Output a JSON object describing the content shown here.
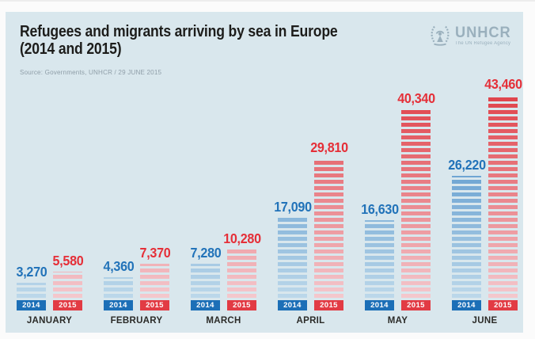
{
  "title_line1": "Refugees and migrants arriving by sea in Europe",
  "title_line2": "(2014 and 2015)",
  "source": "Source: Governments, UNHCR / 29 JUNE 2015",
  "logo": {
    "name": "UNHCR",
    "tagline": "The UN Refugee Agency"
  },
  "chart_data": {
    "type": "bar",
    "title": "Refugees and migrants arriving by sea in Europe (2014 and 2015)",
    "categories": [
      "JANUARY",
      "FEBRUARY",
      "MARCH",
      "APRIL",
      "MAY",
      "JUNE"
    ],
    "series": [
      {
        "name": "2014",
        "values": [
          3270,
          4360,
          7280,
          17090,
          16630,
          26220
        ],
        "labels": [
          "3,270",
          "4,360",
          "7,280",
          "17,090",
          "16,630",
          "26,220"
        ],
        "color": "#1c6fb7"
      },
      {
        "name": "2015",
        "values": [
          5580,
          7370,
          10280,
          29810,
          40340,
          43460
        ],
        "labels": [
          "5,580",
          "7,370",
          "10,280",
          "29,810",
          "40,340",
          "43,460"
        ],
        "color": "#e23b44"
      }
    ],
    "xlabel": "",
    "ylabel": "",
    "ylim": [
      0,
      43460
    ],
    "grid": false,
    "legend_position": "year-blocks-at-bar-base",
    "bar_style": "horizontal-striped-gradient"
  },
  "colors": {
    "background": "#d9e7ed",
    "title": "#1d1d1b",
    "source": "#8f9ea8",
    "month_label": "#2b2b28",
    "bar_2014_solid": "#1c6fb7",
    "bar_2015_solid": "#e23b44",
    "label_2014": "#2273b9",
    "label_2015": "#e52f38",
    "grad_2014_top": "#3c84c4",
    "grad_2014_bottom": "#bcd8ea",
    "grad_2015_top": "#e0434b",
    "grad_2015_bottom": "#f4c8cd",
    "logo": "#9ab0bd"
  }
}
